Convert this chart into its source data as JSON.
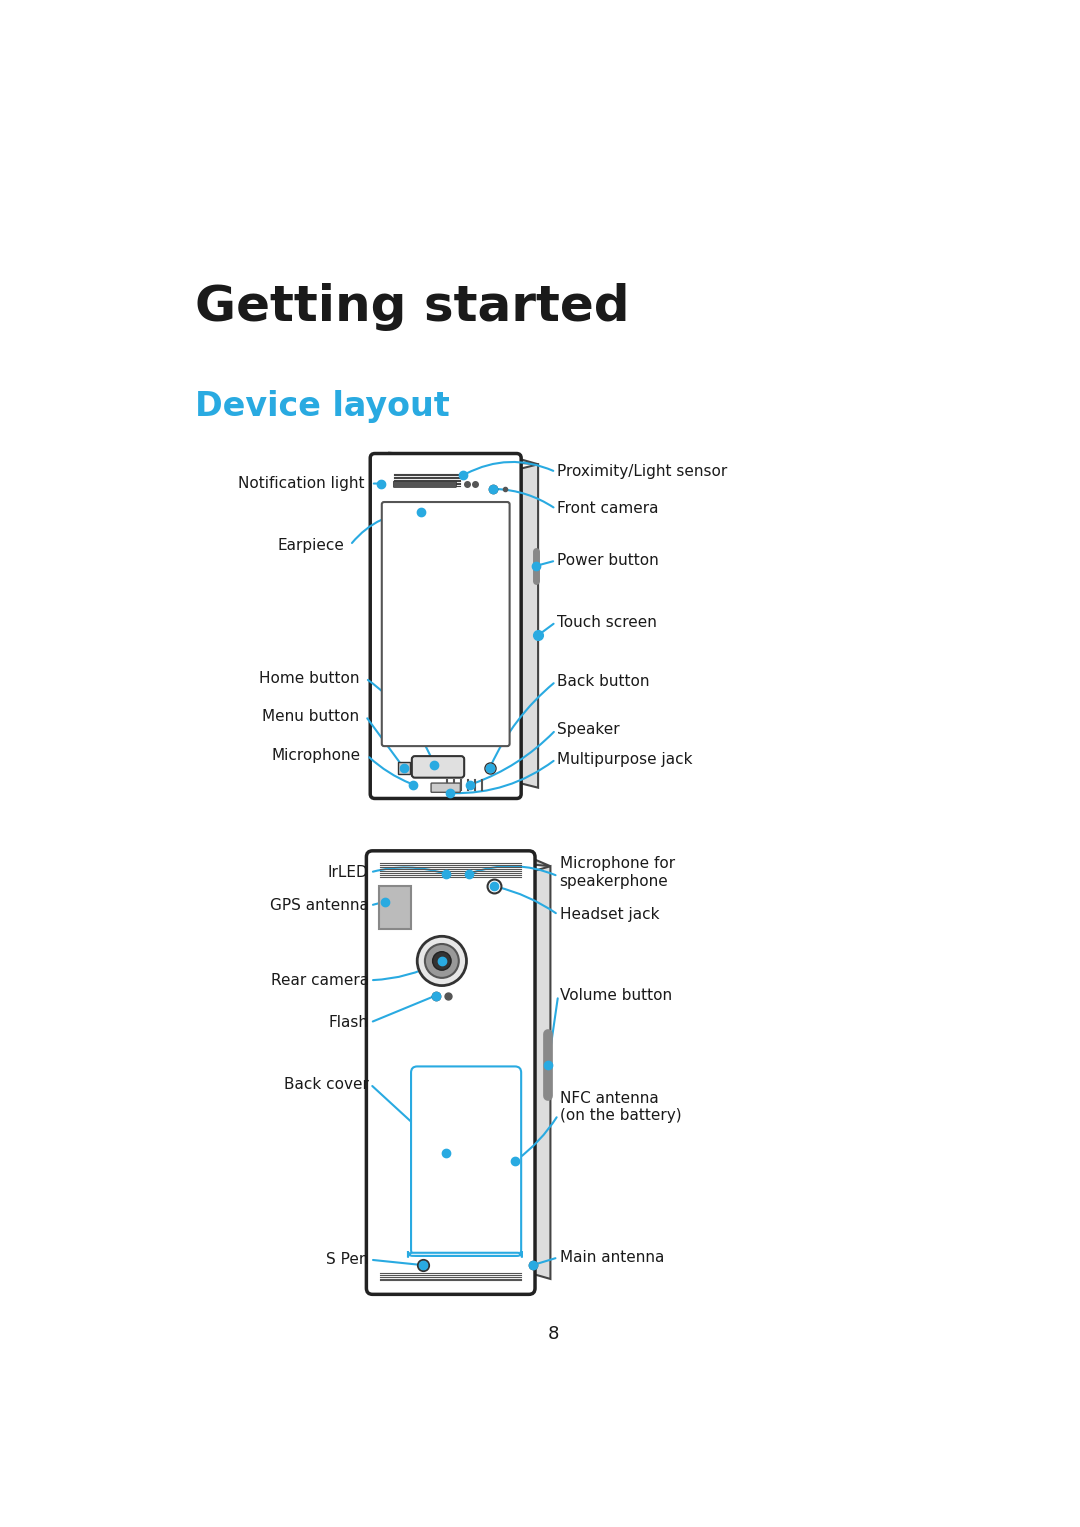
{
  "title": "Getting started",
  "subtitle": "Device layout",
  "title_color": "#1a1a1a",
  "subtitle_color": "#29aae1",
  "background_color": "#ffffff",
  "line_color": "#29aae1",
  "dot_color": "#29aae1",
  "text_color": "#1a1a1a",
  "page_number": "8",
  "label_fontsize": 11.0,
  "title_fontsize": 36,
  "subtitle_fontsize": 24
}
